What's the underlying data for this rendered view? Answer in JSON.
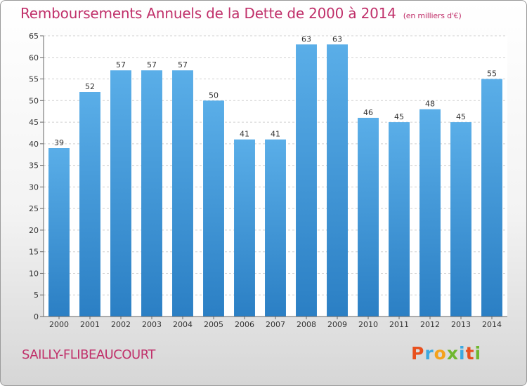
{
  "header": {
    "title": "Remboursements Annuels de la Dette de 2000 à 2014",
    "subtitle": "(en milliers d'€)"
  },
  "footer": {
    "commune": "SAILLY-FLIBEAUCOURT",
    "logo": [
      "P",
      "r",
      "o",
      "x",
      "i",
      "t",
      "i"
    ],
    "logo_colors": [
      "#e8501e",
      "#3da9e0",
      "#f4a21c",
      "#6fb72e",
      "#3da9e0",
      "#e8501e",
      "#6fb72e"
    ]
  },
  "chart_data": {
    "type": "bar",
    "title": "Remboursements Annuels de la Dette de 2000 à 2014",
    "categories": [
      "2000",
      "2001",
      "2002",
      "2003",
      "2004",
      "2005",
      "2006",
      "2007",
      "2008",
      "2009",
      "2010",
      "2011",
      "2012",
      "2013",
      "2014"
    ],
    "values": [
      39,
      52,
      57,
      57,
      57,
      50,
      41,
      41,
      63,
      63,
      46,
      45,
      48,
      45,
      55
    ],
    "ylim": [
      0,
      65
    ],
    "yticks": [
      0,
      5,
      10,
      15,
      20,
      25,
      30,
      35,
      40,
      45,
      50,
      55,
      60,
      65
    ],
    "grid": true,
    "bar_color_top": "#5aaee8",
    "bar_color_bottom": "#2b7fc4"
  }
}
